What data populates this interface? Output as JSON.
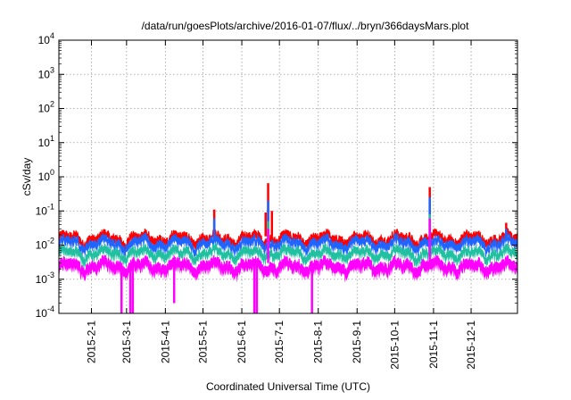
{
  "chart_data": {
    "type": "line",
    "title": "/data/run/goesPlots/archive/2016-01-07/flux/../bryn/366daysMars.plot",
    "xlabel": "Coordinated Universal Time (UTC)",
    "ylabel": "cSv/day",
    "y_scale": "log",
    "ylim": [
      0.0001,
      10000
    ],
    "xlim": [
      "2015-01-06",
      "2016-01-07"
    ],
    "grid": true,
    "legend": "none",
    "x_ticks": [
      {
        "date": "2015-02-01",
        "label": "2015-2-1"
      },
      {
        "date": "2015-03-01",
        "label": "2015-3-1"
      },
      {
        "date": "2015-04-01",
        "label": "2015-4-1"
      },
      {
        "date": "2015-05-01",
        "label": "2015-5-1"
      },
      {
        "date": "2015-06-01",
        "label": "2015-6-1"
      },
      {
        "date": "2015-07-01",
        "label": "2015-7-1"
      },
      {
        "date": "2015-08-01",
        "label": "2015-8-1"
      },
      {
        "date": "2015-09-01",
        "label": "2015-9-1"
      },
      {
        "date": "2015-10-01",
        "label": "2015-10-1"
      },
      {
        "date": "2015-11-01",
        "label": "2015-11-1"
      },
      {
        "date": "2015-12-01",
        "label": "2015-12-1"
      }
    ],
    "y_ticks": [
      {
        "value": 0.0001,
        "base": "10",
        "exp": "-4"
      },
      {
        "value": 0.001,
        "base": "10",
        "exp": "-3"
      },
      {
        "value": 0.01,
        "base": "10",
        "exp": "-2"
      },
      {
        "value": 0.1,
        "base": "10",
        "exp": "-1"
      },
      {
        "value": 1,
        "base": "10",
        "exp": "0"
      },
      {
        "value": 10,
        "base": "10",
        "exp": "1"
      },
      {
        "value": 100,
        "base": "10",
        "exp": "2"
      },
      {
        "value": 1000,
        "base": "10",
        "exp": "3"
      },
      {
        "value": 10000,
        "base": "10",
        "exp": "4"
      }
    ],
    "series": [
      {
        "color": "#ff0000",
        "baseline": 0.018,
        "spikes": [
          {
            "date": "2015-05-10",
            "value": 0.11
          },
          {
            "date": "2015-06-20",
            "value": 0.09
          },
          {
            "date": "2015-06-22",
            "value": 0.65
          },
          {
            "date": "2015-06-25",
            "value": 0.1
          },
          {
            "date": "2015-10-29",
            "value": 0.5
          },
          {
            "date": "2015-12-29",
            "value": 0.045
          }
        ]
      },
      {
        "color": "#1e64ff",
        "baseline": 0.013,
        "spikes": [
          {
            "date": "2015-05-10",
            "value": 0.06
          },
          {
            "date": "2015-06-22",
            "value": 0.2
          },
          {
            "date": "2015-10-29",
            "value": 0.25
          },
          {
            "date": "2015-12-29",
            "value": 0.03
          }
        ]
      },
      {
        "color": "#20c0a0",
        "baseline": 0.0065,
        "spikes": [
          {
            "date": "2015-06-22",
            "value": 0.05
          },
          {
            "date": "2015-10-29",
            "value": 0.08
          }
        ]
      },
      {
        "color": "#ff00ff",
        "baseline": 0.003,
        "spikes": [
          {
            "date": "2015-06-22",
            "value": 0.03
          },
          {
            "date": "2015-10-29",
            "value": 0.06
          }
        ],
        "dips": [
          {
            "date": "2015-02-25",
            "value": 0.0001
          },
          {
            "date": "2015-03-04",
            "value": 0.0001
          },
          {
            "date": "2015-03-06",
            "value": 0.0001
          },
          {
            "date": "2015-04-08",
            "value": 0.0002
          },
          {
            "date": "2015-06-11",
            "value": 0.0001
          },
          {
            "date": "2015-06-13",
            "value": 0.0001
          },
          {
            "date": "2015-07-27",
            "value": 0.0001
          }
        ]
      }
    ]
  }
}
